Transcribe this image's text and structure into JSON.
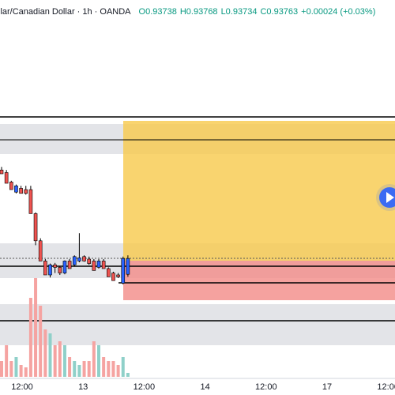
{
  "chart_data": {
    "type": "candlestick",
    "symbol": "llar/Canadian Dollar · 1h · OANDA",
    "ohlc_labels": [
      "O0.93738",
      "H0.93768",
      "L0.93734",
      "C0.93763"
    ],
    "change": "+0.00024 (+0.03%)",
    "x_labels": [
      "12:00",
      "13",
      "12:00",
      "14",
      "12:00",
      "17",
      "12:00"
    ],
    "open": [
      0.93903,
      0.93899,
      0.93884,
      0.93868,
      0.93874,
      0.93872,
      0.93872,
      0.93834,
      0.93791,
      0.93759,
      0.93737,
      0.93753,
      0.93749,
      0.9374,
      0.93759,
      0.93753,
      0.93759,
      0.93766,
      0.93762,
      0.93759,
      0.93749,
      0.93759,
      0.93747,
      0.9374,
      0.93737,
      0.93724,
      0.93738
    ],
    "high": [
      0.93908,
      0.93903,
      0.93886,
      0.9388,
      0.93878,
      0.93878,
      0.93878,
      0.93836,
      0.93795,
      0.93762,
      0.93755,
      0.93756,
      0.93751,
      0.9376,
      0.93762,
      0.93768,
      0.93803,
      0.93768,
      0.93766,
      0.93762,
      0.93762,
      0.93762,
      0.93749,
      0.93742,
      0.9374,
      0.93766,
      0.93768
    ],
    "low": [
      0.93897,
      0.93882,
      0.93872,
      0.93866,
      0.93866,
      0.93864,
      0.93834,
      0.93784,
      0.93759,
      0.93737,
      0.93733,
      0.9374,
      0.93737,
      0.93738,
      0.93747,
      0.9375,
      0.93757,
      0.93758,
      0.93753,
      0.93744,
      0.93747,
      0.93747,
      0.93734,
      0.93728,
      0.93732,
      0.93722,
      0.93734
    ],
    "close": [
      0.93897,
      0.93882,
      0.93872,
      0.93878,
      0.93866,
      0.93866,
      0.93834,
      0.93791,
      0.93759,
      0.93737,
      0.93753,
      0.93749,
      0.9374,
      0.93759,
      0.93747,
      0.93766,
      0.93764,
      0.93759,
      0.93755,
      0.93744,
      0.93759,
      0.93747,
      0.93734,
      0.93728,
      0.93734,
      0.93763,
      0.93763
    ],
    "volume": [
      20,
      40,
      20,
      25,
      15,
      12,
      100,
      125,
      90,
      60,
      55,
      40,
      45,
      40,
      25,
      20,
      15,
      20,
      20,
      45,
      40,
      25,
      20,
      20,
      15,
      25,
      5
    ],
    "ylim": [
      0.93572,
      0.94172
    ],
    "volume_lim": [
      0,
      480
    ],
    "up_color": "#2962ff",
    "down_color": "#ef5350",
    "volume_up_color": "#8fd0c9",
    "volume_down_color": "#f5a3a1"
  }
}
